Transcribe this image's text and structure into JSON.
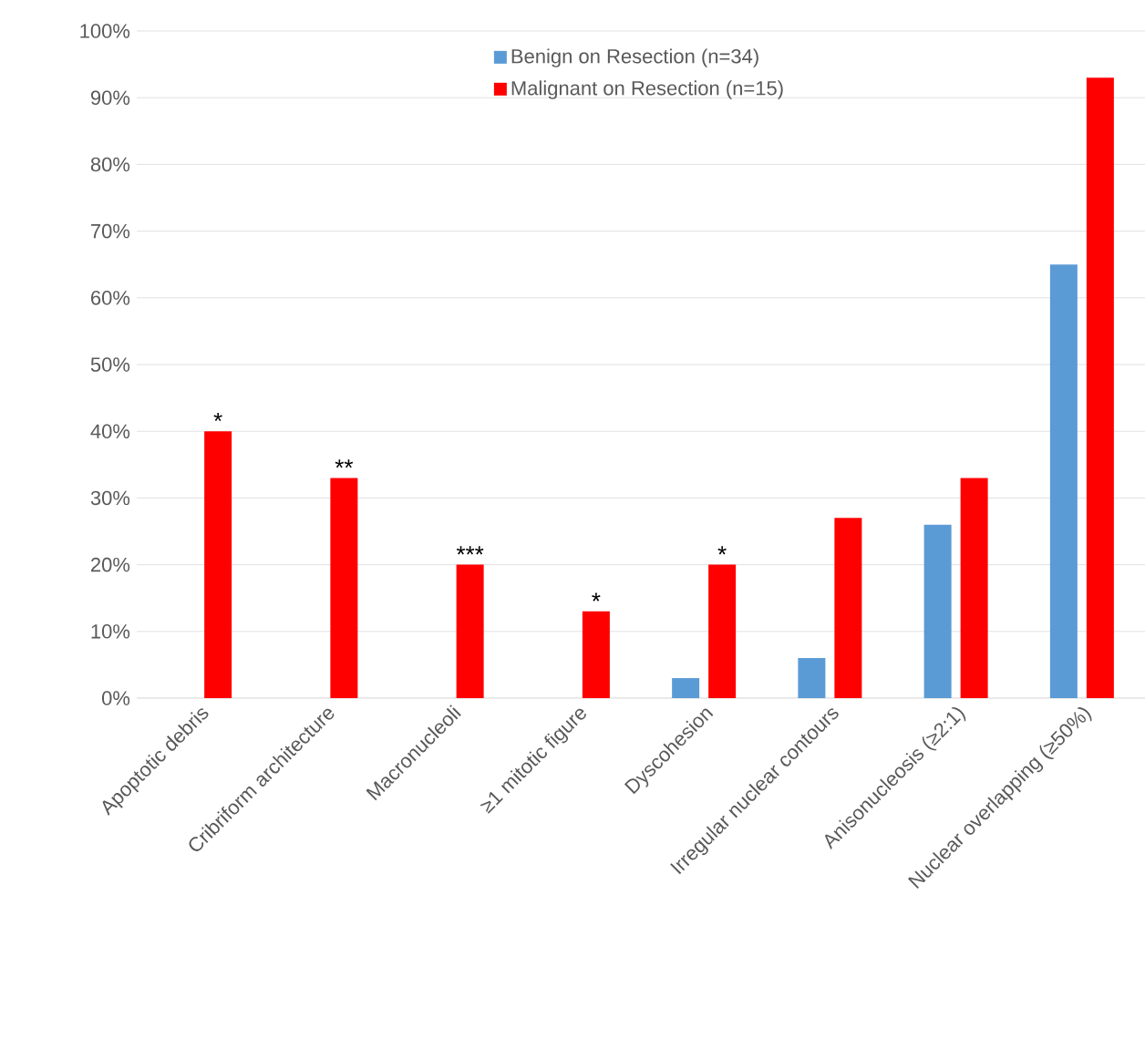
{
  "chart_data": {
    "type": "bar",
    "categories": [
      "Apoptotic debris",
      "Cribriform architecture",
      "Macronucleoli",
      "≥1 mitotic figure",
      "Dyscohesion",
      "Irregular nuclear contours",
      "Anisonucleosis (≥2:1)",
      "Nuclear overlapping (≥50%)"
    ],
    "series": [
      {
        "name": "Benign on Resection (n=34)",
        "color": "#5b9bd5",
        "values": [
          0,
          0,
          0,
          0,
          3,
          6,
          26,
          65
        ]
      },
      {
        "name": "Malignant on Resection (n=15)",
        "color": "#ff0000",
        "values": [
          40,
          33,
          20,
          13,
          20,
          27,
          33,
          93
        ]
      }
    ],
    "ylim": [
      0,
      100
    ],
    "yticks": [
      {
        "value": 0,
        "label": "0%"
      },
      {
        "value": 10,
        "label": "10%"
      },
      {
        "value": 20,
        "label": "20%"
      },
      {
        "value": 30,
        "label": "30%"
      },
      {
        "value": 40,
        "label": "40%"
      },
      {
        "value": 50,
        "label": "50%"
      },
      {
        "value": 60,
        "label": "60%"
      },
      {
        "value": 70,
        "label": "70%"
      },
      {
        "value": 80,
        "label": "80%"
      },
      {
        "value": 90,
        "label": "90%"
      },
      {
        "value": 100,
        "label": "100%"
      }
    ],
    "grid": "y",
    "legend": "top",
    "annotations": [
      {
        "text": "*",
        "x": "Apoptotic debris",
        "y": 40
      },
      {
        "text": "**",
        "x": "Cribriform architecture",
        "y": 33
      },
      {
        "text": "***",
        "x": "Macronucleoli",
        "y": 20
      },
      {
        "text": "*",
        "x": "≥1 mitotic figure",
        "y": 13
      },
      {
        "text": "*",
        "x": "Dyscohesion",
        "y": 20
      }
    ]
  }
}
